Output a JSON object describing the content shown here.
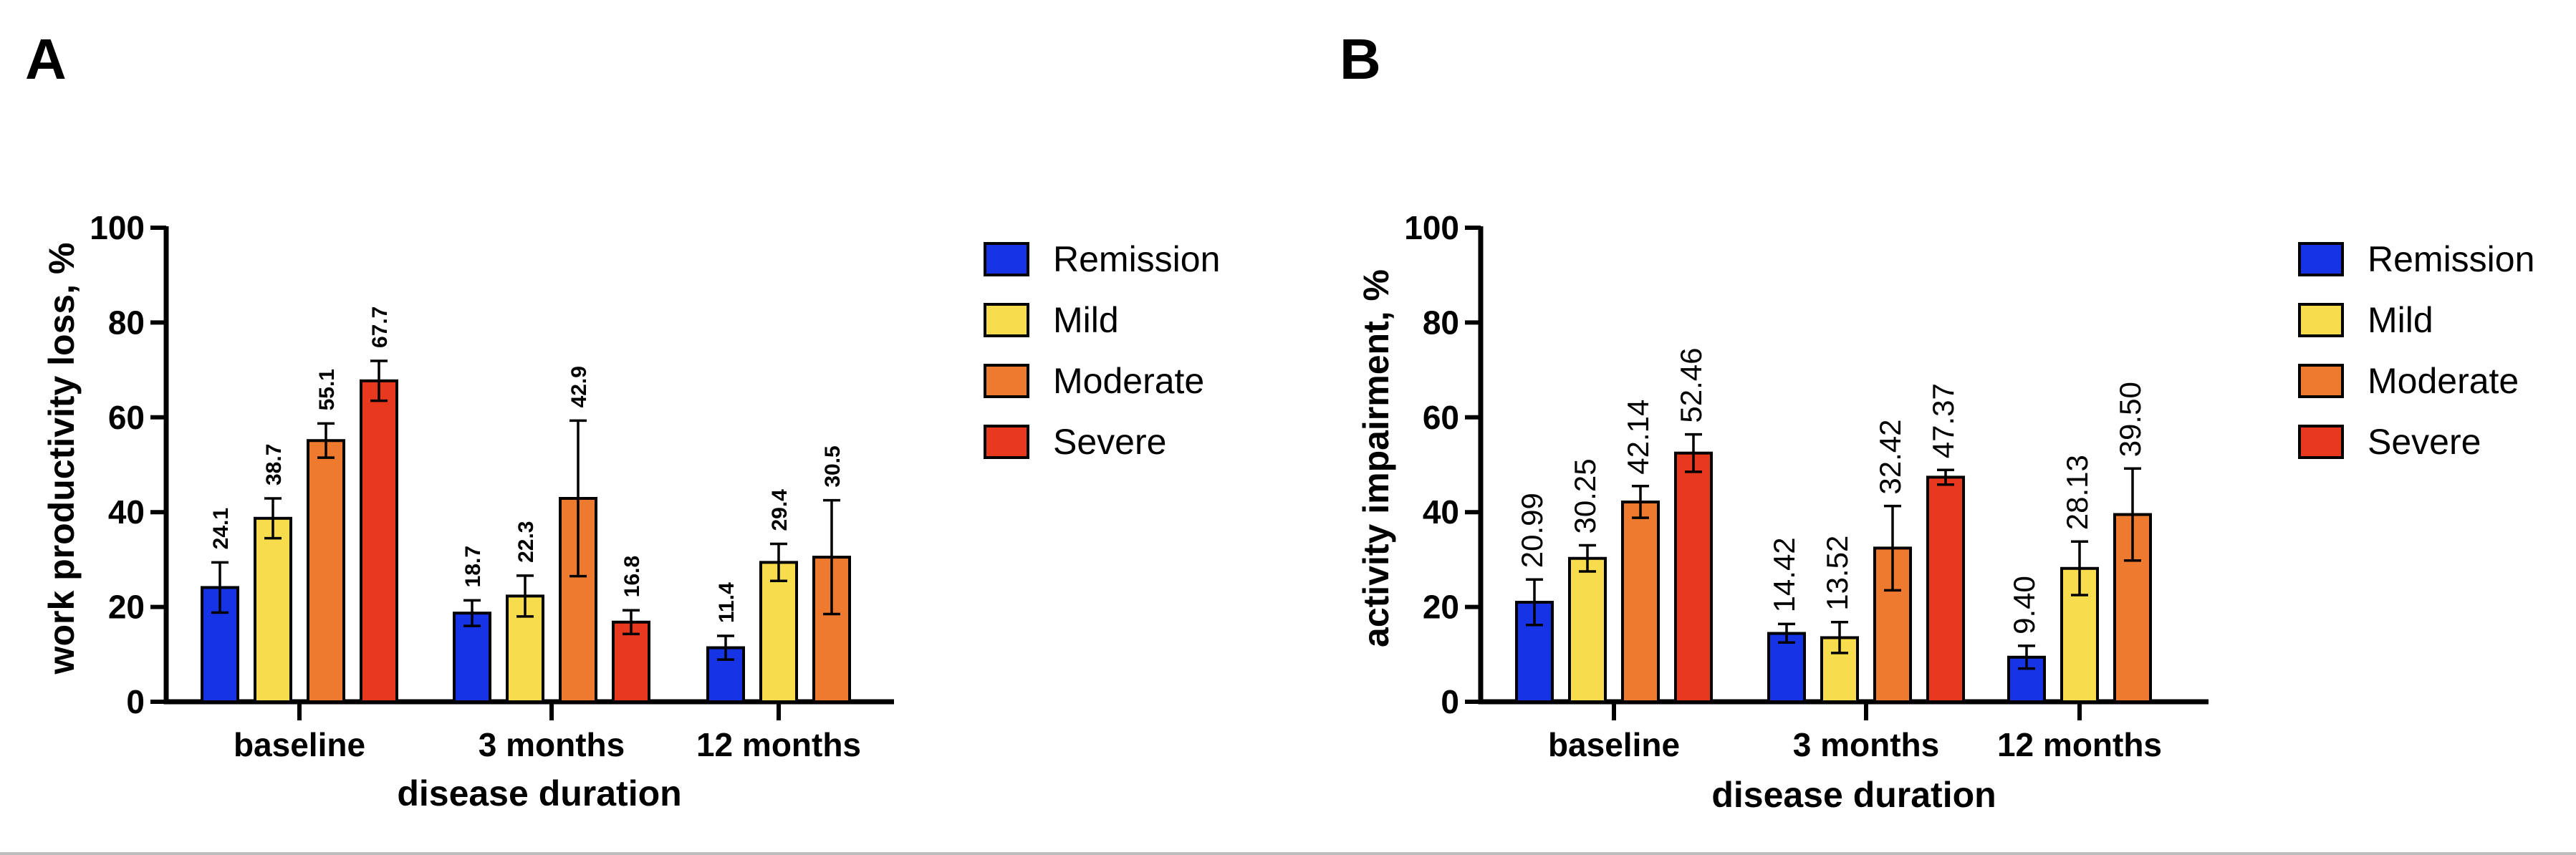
{
  "colors": {
    "Remission": "#1733e6",
    "Mild": "#f7dc4d",
    "Moderate": "#ee7a30",
    "Severe": "#e8391f"
  },
  "chart_data": [
    {
      "panel": "A",
      "type": "bar",
      "xlabel": "disease duration",
      "ylabel": "work productivity loss, %",
      "ylim": [
        0,
        100
      ],
      "yticks": [
        "0",
        "20",
        "40",
        "60",
        "80",
        "100"
      ],
      "categories": [
        "baseline",
        "3 months",
        "12 months"
      ],
      "legend": [
        "Remission",
        "Mild",
        "Moderate",
        "Severe"
      ],
      "series": [
        {
          "name": "Remission",
          "values": [
            24.1,
            18.7,
            11.4
          ],
          "labels": [
            "24.1",
            "18.7",
            "11.4"
          ],
          "err_low": [
            18.8,
            16.0,
            8.9
          ],
          "err_high": [
            29.4,
            21.4,
            13.9
          ]
        },
        {
          "name": "Mild",
          "values": [
            38.7,
            22.3,
            29.4
          ],
          "labels": [
            "38.7",
            "22.3",
            "29.4"
          ],
          "err_low": [
            34.5,
            18.0,
            25.5
          ],
          "err_high": [
            42.9,
            26.6,
            33.3
          ]
        },
        {
          "name": "Moderate",
          "values": [
            55.1,
            42.9,
            30.5
          ],
          "labels": [
            "55.1",
            "42.9",
            "30.5"
          ],
          "err_low": [
            51.5,
            26.5,
            18.5
          ],
          "err_high": [
            58.7,
            59.3,
            42.5
          ]
        },
        {
          "name": "Severe",
          "values": [
            67.7,
            16.8,
            null
          ],
          "labels": [
            "67.7",
            "16.8",
            null
          ],
          "err_low": [
            63.5,
            14.3,
            null
          ],
          "err_high": [
            71.9,
            19.3,
            null
          ]
        }
      ]
    },
    {
      "panel": "B",
      "type": "bar",
      "xlabel": "disease duration",
      "ylabel": "activity impairment, %",
      "ylim": [
        0,
        100
      ],
      "yticks": [
        "0",
        "20",
        "40",
        "60",
        "80",
        "100"
      ],
      "categories": [
        "baseline",
        "3 months",
        "12 months"
      ],
      "legend": [
        "Remission",
        "Mild",
        "Moderate",
        "Severe"
      ],
      "series": [
        {
          "name": "Remission",
          "values": [
            20.99,
            14.42,
            9.4
          ],
          "labels": [
            "20.99",
            "14.42",
            "9.40"
          ],
          "err_low": [
            16.2,
            12.5,
            7.0
          ],
          "err_high": [
            25.8,
            16.4,
            11.8
          ]
        },
        {
          "name": "Mild",
          "values": [
            30.25,
            13.52,
            28.13
          ],
          "labels": [
            "30.25",
            "13.52",
            "28.13"
          ],
          "err_low": [
            27.5,
            10.3,
            22.5
          ],
          "err_high": [
            33.0,
            16.8,
            33.8
          ]
        },
        {
          "name": "Moderate",
          "values": [
            42.14,
            32.42,
            39.5
          ],
          "labels": [
            "42.14",
            "32.42",
            "39.50"
          ],
          "err_low": [
            38.8,
            23.5,
            29.8
          ],
          "err_high": [
            45.5,
            41.3,
            49.2
          ]
        },
        {
          "name": "Severe",
          "values": [
            52.46,
            47.37,
            null
          ],
          "labels": [
            "52.46",
            "47.37",
            null
          ],
          "err_low": [
            48.5,
            45.8,
            null
          ],
          "err_high": [
            56.4,
            48.9,
            null
          ]
        }
      ]
    }
  ]
}
